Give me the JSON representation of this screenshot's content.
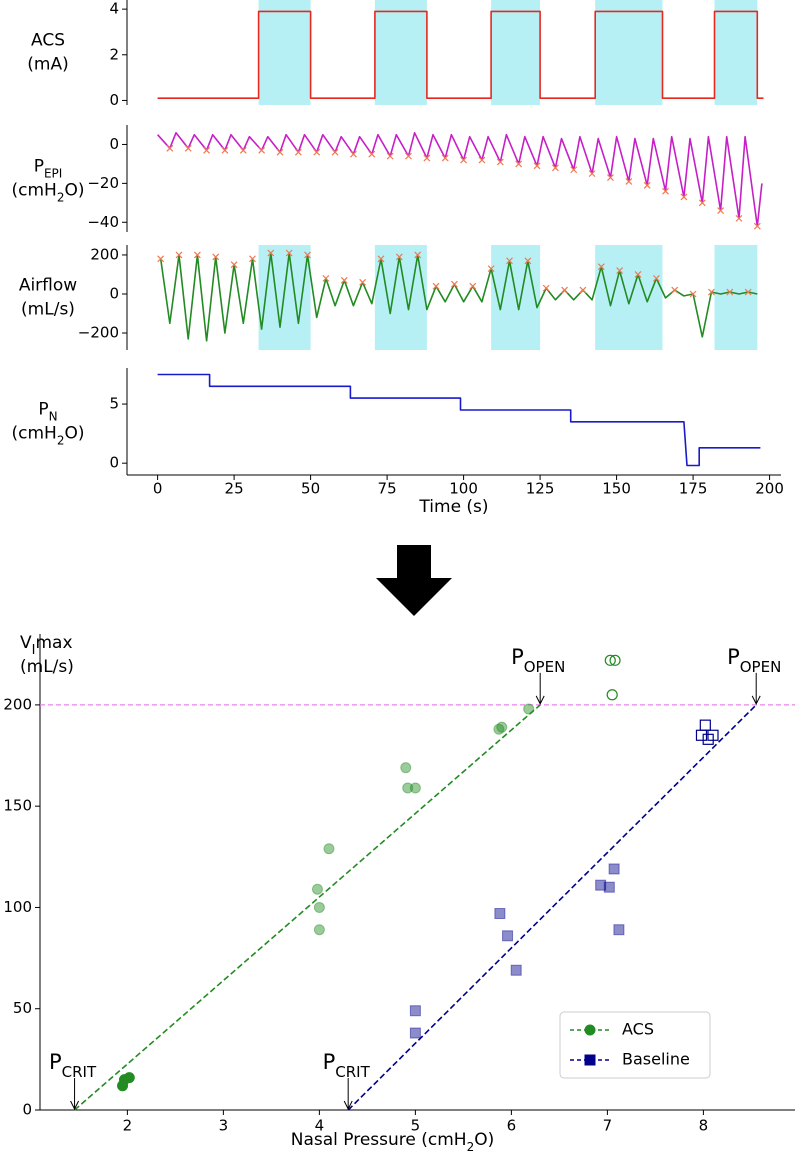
{
  "chart_data": [
    {
      "type": "line",
      "y_label": [
        [
          "ACS"
        ],
        [
          "(mA)"
        ]
      ],
      "xlim": [
        -10,
        207
      ],
      "ylim": [
        -0.2,
        4.4
      ],
      "yticks": [
        0,
        2,
        4
      ],
      "shaded": [
        [
          33,
          50
        ],
        [
          71,
          88
        ],
        [
          109,
          125
        ],
        [
          143,
          165
        ],
        [
          182,
          196
        ]
      ],
      "shade_color": "#b6f0f5",
      "series": [
        {
          "color": "#e8281e",
          "x": [
            0,
            33,
            33,
            50,
            50,
            71,
            71,
            88,
            88,
            109,
            109,
            125,
            125,
            143,
            143,
            165,
            165,
            182,
            182,
            196,
            196,
            198
          ],
          "values": [
            0.1,
            0.1,
            3.9,
            3.9,
            0.1,
            0.1,
            3.9,
            3.9,
            0.1,
            0.1,
            3.9,
            3.9,
            0.1,
            0.1,
            3.9,
            3.9,
            0.1,
            0.1,
            3.9,
            3.9,
            0.1,
            0.1
          ]
        }
      ]
    },
    {
      "type": "line",
      "y_label": [
        [
          "P",
          {
            "sub": "EPI"
          }
        ],
        [
          "(cmH",
          {
            "sub": "2"
          },
          "O)"
        ]
      ],
      "xlim": [
        -10,
        207
      ],
      "ylim": [
        -45,
        10
      ],
      "yticks": [
        0,
        {
          "value": -20,
          "label": "−20"
        },
        {
          "value": -40,
          "label": "−40"
        }
      ],
      "series": [
        {
          "color": "#c71fc7",
          "x": [
            0,
            4,
            6,
            10,
            12,
            16,
            18,
            22,
            24,
            28,
            30,
            34,
            36,
            40,
            42,
            46,
            48,
            52,
            54,
            58,
            60,
            64,
            66,
            70,
            72,
            76,
            78,
            82,
            84,
            88,
            90,
            94,
            96,
            100,
            102,
            106,
            108,
            112,
            114,
            118,
            120,
            124,
            126,
            130,
            132,
            136,
            138,
            142,
            144,
            148,
            150,
            154,
            156,
            160,
            162,
            166,
            168,
            172,
            174,
            178,
            180,
            184,
            186,
            190,
            192,
            196,
            197.5
          ],
          "values": [
            5,
            -2,
            6,
            -2,
            5,
            -3,
            5,
            -3,
            5,
            -3,
            4,
            -3,
            4,
            -4,
            5,
            -4,
            5,
            -4,
            5,
            -4,
            4,
            -5,
            4,
            -5,
            5,
            -6,
            5,
            -6,
            6,
            -7,
            5,
            -7,
            5,
            -8,
            4,
            -8,
            4,
            -9,
            5,
            -10,
            4,
            -11,
            4,
            -12,
            3,
            -13,
            4,
            -15,
            3,
            -17,
            4,
            -19,
            3,
            -21,
            3,
            -24,
            4,
            -27,
            3,
            -30,
            4,
            -34,
            4,
            -38,
            4,
            -42,
            -20
          ]
        },
        {
          "color": "#f07850",
          "marker": "x",
          "x": [
            4,
            10,
            16,
            22,
            28,
            34,
            40,
            46,
            52,
            58,
            64,
            70,
            76,
            82,
            88,
            94,
            100,
            106,
            112,
            118,
            124,
            130,
            136,
            142,
            148,
            154,
            160,
            166,
            172,
            178,
            184,
            190,
            196
          ],
          "values": [
            -2,
            -2,
            -3,
            -3,
            -3,
            -3,
            -4,
            -4,
            -4,
            -4,
            -5,
            -5,
            -6,
            -6,
            -7,
            -7,
            -8,
            -8,
            -9,
            -10,
            -11,
            -12,
            -13,
            -15,
            -17,
            -19,
            -21,
            -24,
            -27,
            -30,
            -34,
            -38,
            -42
          ]
        }
      ]
    },
    {
      "type": "line",
      "y_label": [
        [
          "Airflow"
        ],
        [
          "(mL/s)"
        ]
      ],
      "xlim": [
        -10,
        207
      ],
      "ylim": [
        -287,
        251
      ],
      "yticks": [
        200,
        0,
        {
          "value": -200,
          "label": "−200"
        }
      ],
      "shaded": [
        [
          33,
          50
        ],
        [
          71,
          88
        ],
        [
          109,
          125
        ],
        [
          143,
          165
        ],
        [
          182,
          196
        ]
      ],
      "shade_color": "#b6f0f5",
      "series": [
        {
          "color": "#228b22",
          "x": [
            1,
            4,
            7,
            10,
            13,
            16,
            19,
            22,
            25,
            28,
            31,
            34,
            37,
            40,
            43,
            46,
            49,
            52,
            55,
            58,
            61,
            64,
            67,
            70,
            73,
            76,
            79,
            82,
            85,
            88,
            91,
            94,
            97,
            100,
            103,
            106,
            109,
            112,
            115,
            118,
            121,
            124,
            127,
            130,
            133,
            136,
            139,
            142,
            145,
            148,
            151,
            154,
            157,
            160,
            163,
            166,
            169,
            172,
            175,
            178,
            181,
            184,
            187,
            190,
            193,
            196
          ],
          "values": [
            180,
            -150,
            200,
            -230,
            200,
            -240,
            190,
            -200,
            150,
            -150,
            180,
            -180,
            210,
            -170,
            210,
            -150,
            200,
            -120,
            80,
            -60,
            70,
            -60,
            60,
            -50,
            180,
            -100,
            190,
            -80,
            200,
            -80,
            40,
            -40,
            50,
            -40,
            40,
            -40,
            130,
            -80,
            170,
            -80,
            170,
            -70,
            30,
            -30,
            20,
            -30,
            20,
            -30,
            140,
            -60,
            120,
            -50,
            100,
            -40,
            80,
            -20,
            20,
            -10,
            0,
            -220,
            10,
            0,
            10,
            0,
            10,
            0
          ]
        },
        {
          "color": "#f07850",
          "marker": "x",
          "x": [
            1,
            7,
            13,
            19,
            25,
            31,
            37,
            43,
            49,
            55,
            61,
            67,
            73,
            79,
            85,
            91,
            97,
            103,
            109,
            115,
            121,
            127,
            133,
            139,
            145,
            151,
            157,
            163,
            169,
            175,
            181,
            187,
            193
          ],
          "values": [
            180,
            200,
            200,
            190,
            150,
            180,
            210,
            210,
            200,
            80,
            70,
            60,
            180,
            190,
            200,
            40,
            50,
            40,
            130,
            170,
            170,
            30,
            20,
            20,
            140,
            120,
            100,
            80,
            20,
            0,
            10,
            10,
            10
          ]
        }
      ]
    },
    {
      "type": "line",
      "y_label": [
        [
          "P",
          {
            "sub": "N"
          }
        ],
        [
          "(cmH",
          {
            "sub": "2"
          },
          "O)"
        ]
      ],
      "xlim": [
        -10,
        207
      ],
      "ylim": [
        -1,
        8.05
      ],
      "yticks": [
        0,
        5
      ],
      "xticks": [
        0,
        25,
        50,
        75,
        100,
        125,
        150,
        175,
        200
      ],
      "x_label": [
        "Time (s)"
      ],
      "series": [
        {
          "color": "#1a1acd",
          "x": [
            0,
            17,
            17,
            63,
            63,
            99,
            99,
            135,
            135,
            172,
            173,
            177,
            177,
            197
          ],
          "values": [
            7.5,
            7.5,
            6.5,
            6.5,
            5.5,
            5.5,
            4.5,
            4.5,
            3.5,
            3.5,
            -0.2,
            -0.2,
            1.3,
            1.3
          ]
        }
      ]
    },
    {
      "type": "scatter",
      "y_label": [
        [
          "V",
          {
            "sub": "I"
          },
          "max"
        ],
        [
          "(mL/s)"
        ]
      ],
      "x_label": [
        "Nasal Pressure (cmH",
        {
          "sub": "2"
        },
        "O)"
      ],
      "xlim": [
        1.09,
        8.85
      ],
      "ylim": [
        0,
        235
      ],
      "xticks": [
        2,
        3,
        4,
        5,
        6,
        7,
        8
      ],
      "yticks": [
        0,
        50,
        100,
        150,
        200
      ],
      "legend": "lower right",
      "series": [
        {
          "name": "ACS",
          "color": "#228b22",
          "marker": "circle",
          "x": [
            1.95,
            1.97,
            2.02
          ],
          "values": [
            12,
            15,
            16
          ]
        },
        {
          "color": "#228b22",
          "marker": "circle",
          "alpha": 0.45,
          "x": [
            4.0,
            4.0,
            3.98,
            4.1,
            4.9,
            4.92,
            5.0,
            5.87,
            5.9,
            6.18
          ],
          "values": [
            89,
            100,
            109,
            129,
            169,
            159,
            159,
            188,
            189,
            198
          ]
        },
        {
          "color": "#228b22",
          "marker": "circle",
          "fill": "none",
          "x": [
            7.03,
            7.08,
            7.05
          ],
          "values": [
            222,
            222,
            205
          ]
        },
        {
          "name": "Baseline",
          "color": "#00008b",
          "marker": "square",
          "alpha": 0.45,
          "x": [
            5.0,
            5.0,
            5.88,
            5.96,
            6.05,
            6.93,
            7.02,
            7.07,
            7.12
          ],
          "values": [
            49,
            38,
            97,
            86,
            69,
            111,
            110,
            119,
            89
          ]
        },
        {
          "color": "#00008b",
          "marker": "square",
          "fill": "none",
          "x": [
            7.98,
            8.02,
            8.05,
            8.1
          ],
          "values": [
            185,
            190,
            183,
            185
          ]
        }
      ],
      "fit_lines": [
        {
          "color": "#228b22",
          "x": [
            1.45,
            6.3
          ],
          "values": [
            0,
            200
          ]
        },
        {
          "color": "#00008b",
          "x": [
            4.3,
            8.55
          ],
          "values": [
            0,
            200
          ]
        }
      ],
      "hline": {
        "value": 200,
        "color": "#ee82ee"
      },
      "annotations": [
        {
          "label": [
            "P",
            {
              "sub": "CRIT"
            }
          ],
          "x": 1.45,
          "y": 0
        },
        {
          "label": [
            "P",
            {
              "sub": "CRIT"
            }
          ],
          "x": 4.3,
          "y": 0
        },
        {
          "label": [
            "P",
            {
              "sub": "OPEN"
            }
          ],
          "x": 6.3,
          "y": 200
        },
        {
          "label": [
            "P",
            {
              "sub": "OPEN"
            }
          ],
          "x": 8.55,
          "y": 200
        }
      ]
    }
  ]
}
